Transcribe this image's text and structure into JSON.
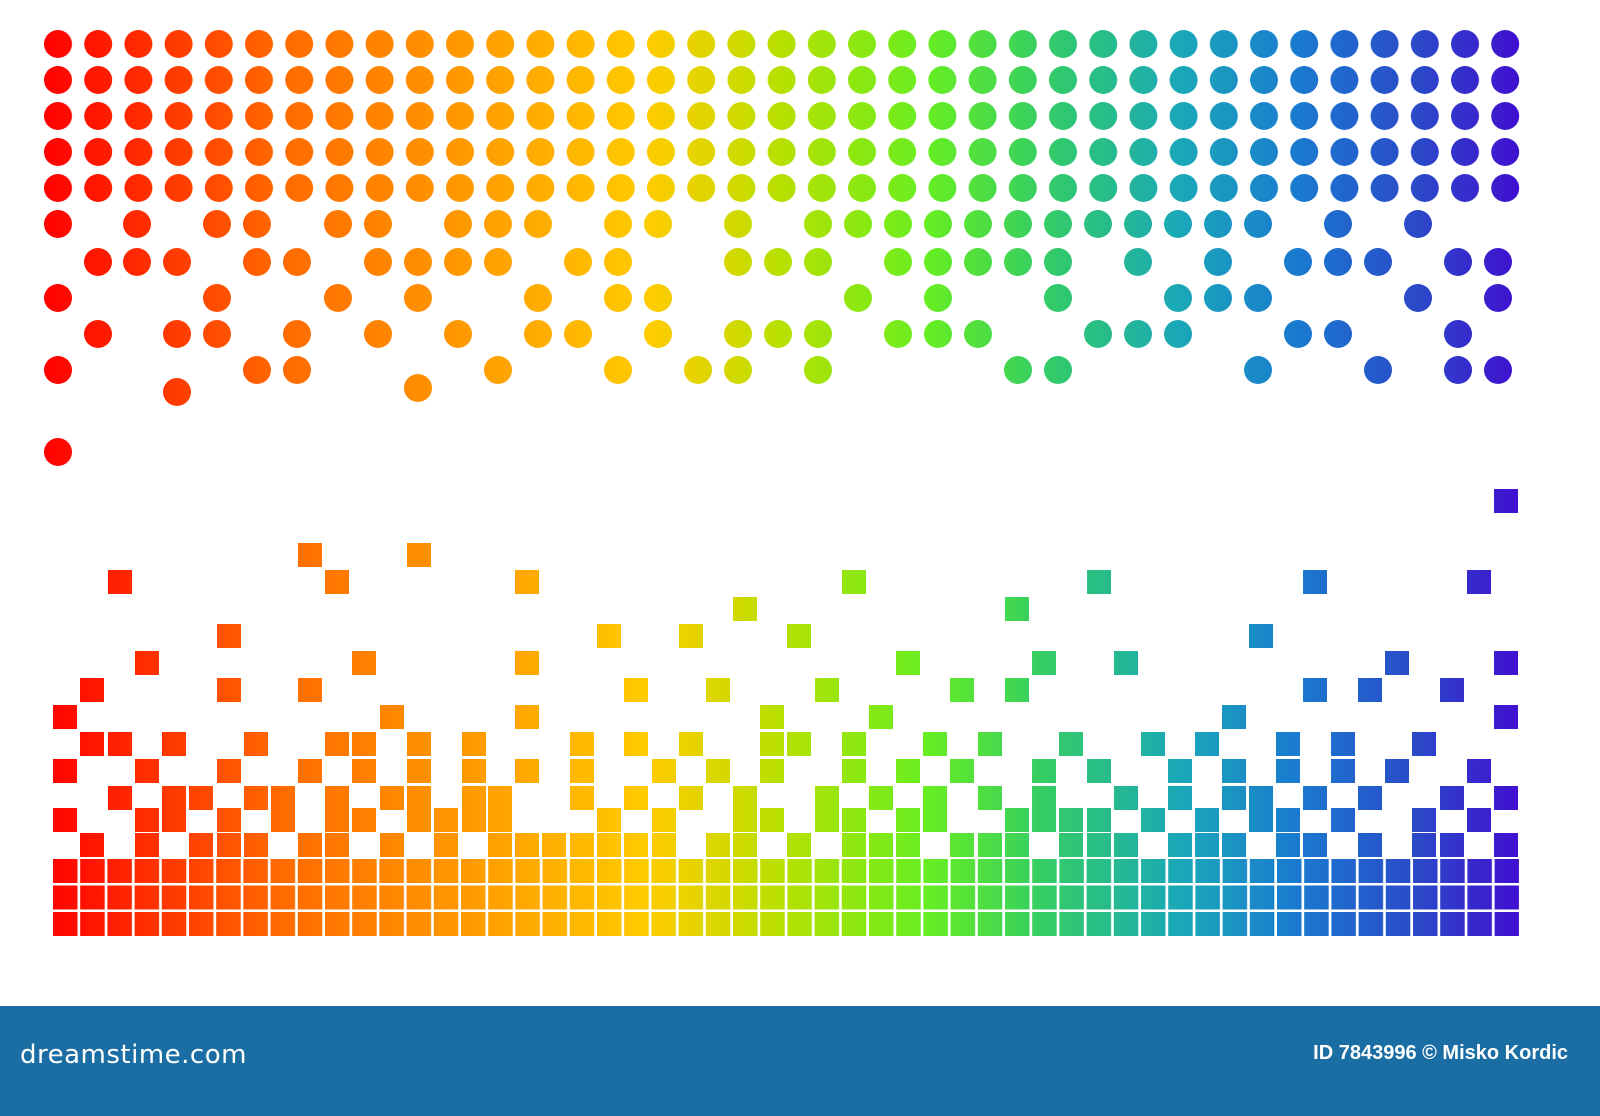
{
  "footer": {
    "logo": "dreamstime.com",
    "credit": "ID 7843996 © Misko Kordic"
  }
}
